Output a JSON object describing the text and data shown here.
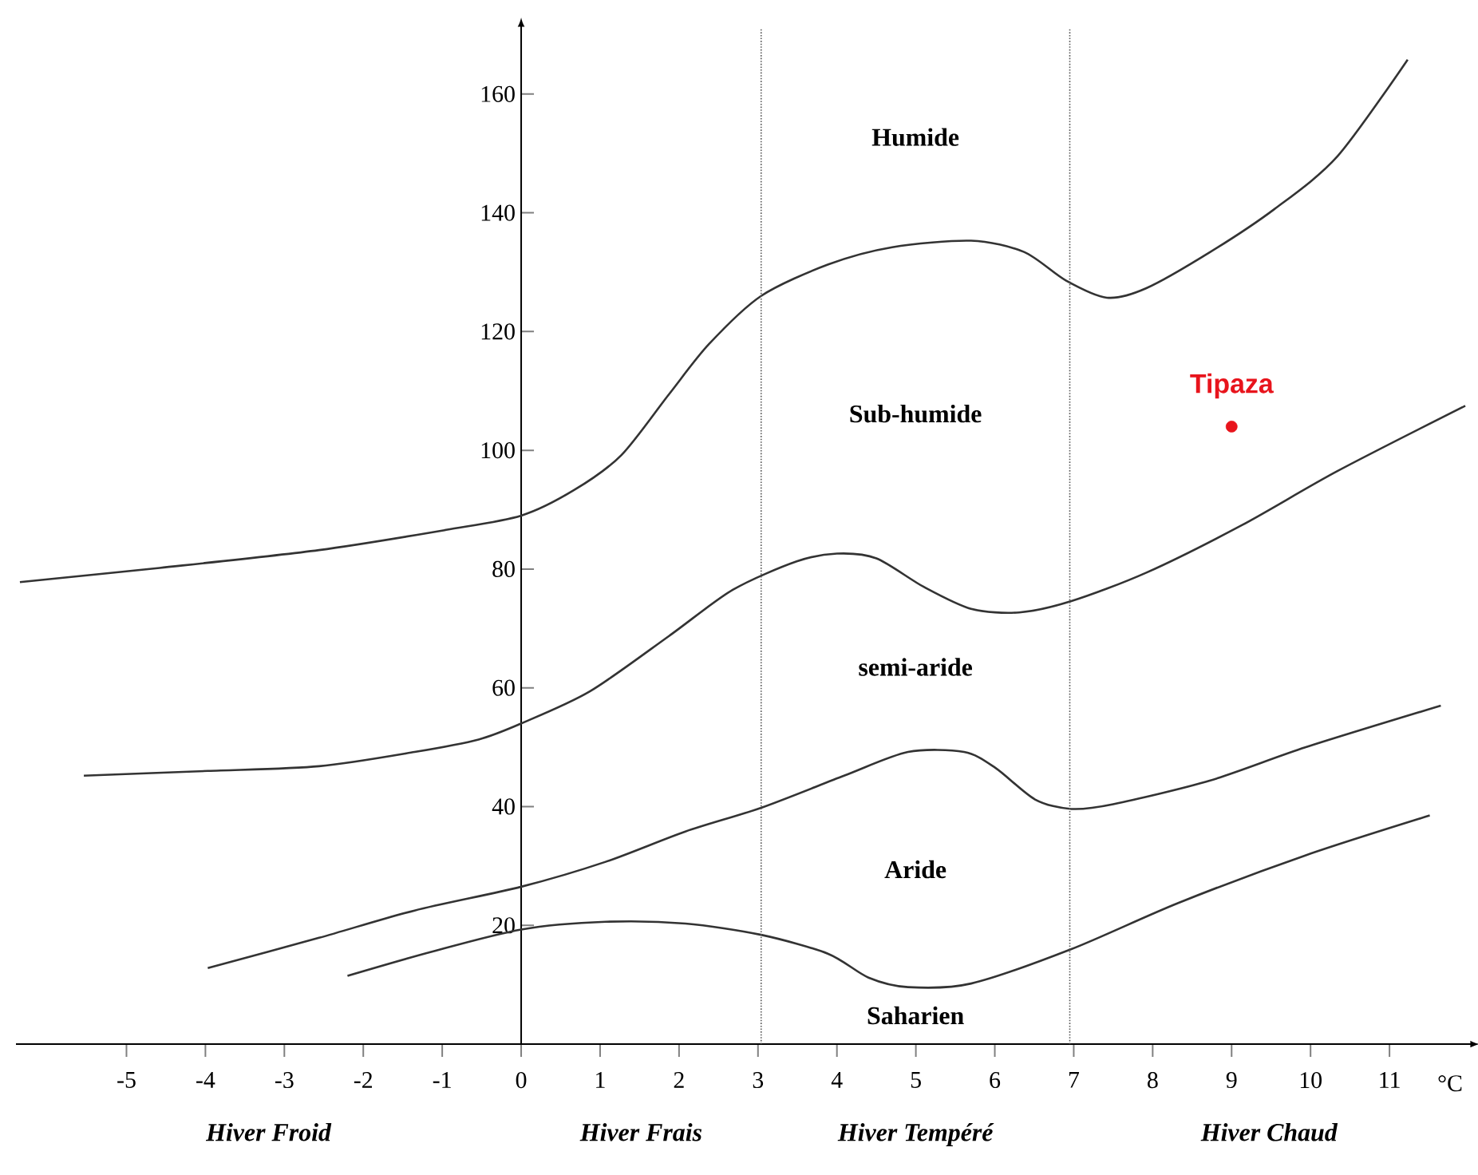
{
  "chart_data": {
    "type": "line",
    "xlabel": "°C",
    "xlim": [
      -6.4,
      12
    ],
    "ylim": [
      0,
      171
    ],
    "xticks": [
      -5,
      -4,
      -3,
      -2,
      -1,
      0,
      1,
      2,
      3,
      4,
      5,
      6,
      7,
      8,
      9,
      10,
      11
    ],
    "yticks": [
      20,
      40,
      60,
      80,
      100,
      120,
      140,
      160
    ],
    "marker": "none",
    "line_style": "solid",
    "series": [
      {
        "color": "#333333",
        "x": [
          -6.35,
          -4.58,
          -2.56,
          -0.95,
          0,
          0.67,
          1.27,
          1.87,
          2.38,
          3.04,
          3.89,
          4.7,
          5.7,
          6.37,
          6.9,
          7.42,
          7.92,
          8.73,
          9.54,
          10.34,
          11.23
        ],
        "values": [
          77.8,
          80.2,
          83.2,
          86.6,
          89,
          93.3,
          99.2,
          109.4,
          117.9,
          126,
          131.3,
          134.2,
          135.3,
          133.4,
          128.6,
          125.7,
          127.3,
          133.4,
          140.6,
          149.5,
          165.8
        ]
      },
      {
        "color": "#333333",
        "x": [
          -5.54,
          -3.97,
          -2.56,
          -1.35,
          -0.54,
          0,
          0.87,
          1.87,
          2.68,
          3.49,
          4,
          4.5,
          5.1,
          5.7,
          6.31,
          6.97,
          7.92,
          9.13,
          10.34,
          11.96
        ],
        "values": [
          45.2,
          46,
          46.8,
          49.2,
          51.3,
          54,
          59.4,
          68.7,
          76.5,
          81.3,
          82.6,
          81.8,
          77,
          73.3,
          72.7,
          74.6,
          79.4,
          87.4,
          96.5,
          107.5
        ]
      },
      {
        "color": "#333333",
        "x": [
          -3.97,
          -2.56,
          -1.35,
          0,
          1.07,
          2.08,
          3.04,
          4.09,
          4.9,
          5.61,
          6.01,
          6.51,
          6.97,
          7.5,
          8.73,
          9.94,
          11.65
        ],
        "values": [
          12.8,
          17.9,
          22.5,
          26.5,
          30.7,
          35.8,
          39.8,
          45.2,
          49.2,
          49.2,
          46.5,
          41.2,
          39.6,
          40.4,
          44.4,
          50,
          57
        ]
      },
      {
        "color": "#333333",
        "x": [
          -2.2,
          -1.15,
          0,
          1.07,
          2.08,
          3.04,
          3.89,
          4.4,
          4.9,
          5.7,
          6.97,
          8.33,
          9.94,
          11.51
        ],
        "values": [
          11.5,
          15.5,
          19.3,
          20.6,
          20.3,
          18.4,
          15.2,
          11.2,
          9.6,
          10.2,
          16,
          23.8,
          31.8,
          38.5
        ]
      },
      {
        "type": "scatter",
        "name": "Tipaza",
        "color": "#e8141c",
        "marker": "circle",
        "x": [
          9
        ],
        "values": [
          104
        ]
      }
    ],
    "ref_lines": [
      {
        "axis": "x",
        "value": 3.04,
        "color": "#555555",
        "line_style": "dotted"
      },
      {
        "axis": "x",
        "value": 6.95,
        "color": "#555555",
        "line_style": "dotted"
      }
    ],
    "annotations": [
      "Humide",
      "Sub-humide",
      "semi-aride",
      "Aride",
      "Saharien",
      "Hiver Froid",
      "Hiver Frais",
      "Hiver Tempéré",
      "Hiver Chaud"
    ]
  }
}
